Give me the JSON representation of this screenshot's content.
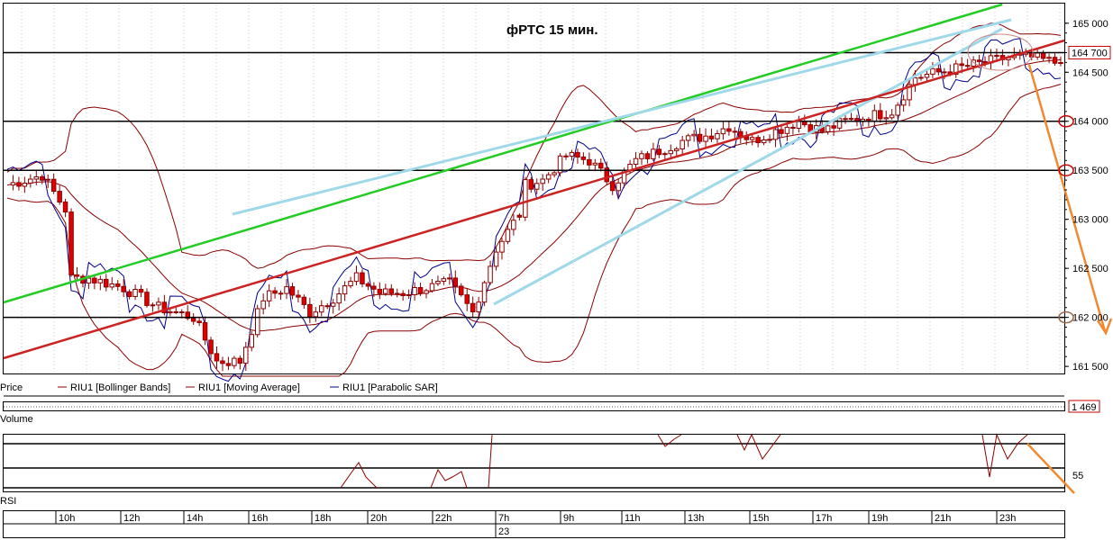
{
  "chart_data": {
    "type": "candlestick",
    "title": "фРТС   15 мин.",
    "price_axis": {
      "ylim": [
        161400,
        165200
      ],
      "ticks": [
        161500,
        162000,
        162500,
        163000,
        163500,
        164000,
        164500,
        165000
      ],
      "tick_labels": [
        "161 500",
        "162 000",
        "162 500",
        "163 000",
        "163 500",
        "164 000",
        "164 500",
        "165 000"
      ],
      "current_price": 164700,
      "current_price_label": "164 700"
    },
    "time_axis": {
      "labels": [
        "10h",
        "12h",
        "14h",
        "16h",
        "18h",
        "20h",
        "22h",
        "7h",
        "9h",
        "11h",
        "13h",
        "15h",
        "17h",
        "19h",
        "21h",
        "23h"
      ],
      "date_label": "23",
      "bar_count": 182
    },
    "candles": {
      "note_keys": [
        "anchors_bar_index",
        "anchors_close"
      ],
      "anchors_bar_index": [
        0,
        6,
        10,
        11,
        14,
        20,
        26,
        32,
        36,
        40,
        44,
        48,
        52,
        56,
        60,
        64,
        68,
        72,
        76,
        80,
        84,
        88,
        89,
        92,
        96,
        100,
        104,
        108,
        112,
        116,
        120,
        124,
        128,
        132,
        136,
        140,
        144,
        148,
        152,
        156,
        160,
        164,
        168,
        172,
        176,
        180,
        181
      ],
      "anchors_close": [
        163350,
        163450,
        163100,
        162400,
        162400,
        162300,
        162100,
        162000,
        161550,
        161550,
        162200,
        162300,
        162050,
        162200,
        162400,
        162250,
        162250,
        162300,
        162350,
        162050,
        162700,
        163050,
        163350,
        163400,
        163650,
        163600,
        163350,
        163600,
        163700,
        163800,
        163850,
        163950,
        163800,
        163900,
        164000,
        163900,
        164000,
        164050,
        164100,
        164450,
        164500,
        164550,
        164600,
        164650,
        164650,
        164600,
        164650
      ]
    },
    "legend": [
      {
        "name": "Price",
        "color": "#000000"
      },
      {
        "name": "RIU1 [Bollinger Bands]",
        "color": "#8b0000"
      },
      {
        "name": "RIU1 [Moving Average]",
        "color": "#8b0000"
      },
      {
        "name": "RIU1 [Parabolic SAR]",
        "color": "#00008b"
      }
    ],
    "horizontal_levels": [
      164700,
      164000,
      163500,
      162000
    ],
    "volume_panel": {
      "label": "Volume",
      "value_label": "1 469"
    },
    "rsi_panel": {
      "label": "RSI",
      "level_label": "55"
    },
    "colors": {
      "bull_candle": "#ffffff",
      "bear_candle": "#e00000",
      "candle_outline": "#8b0000",
      "trend_green": "#22cc22",
      "trend_cyan": "#9fd8e8",
      "trend_red": "#cc2222",
      "forecast_orange": "#f08a30",
      "bollinger": "#8b0000",
      "sar": "#00008b"
    }
  }
}
